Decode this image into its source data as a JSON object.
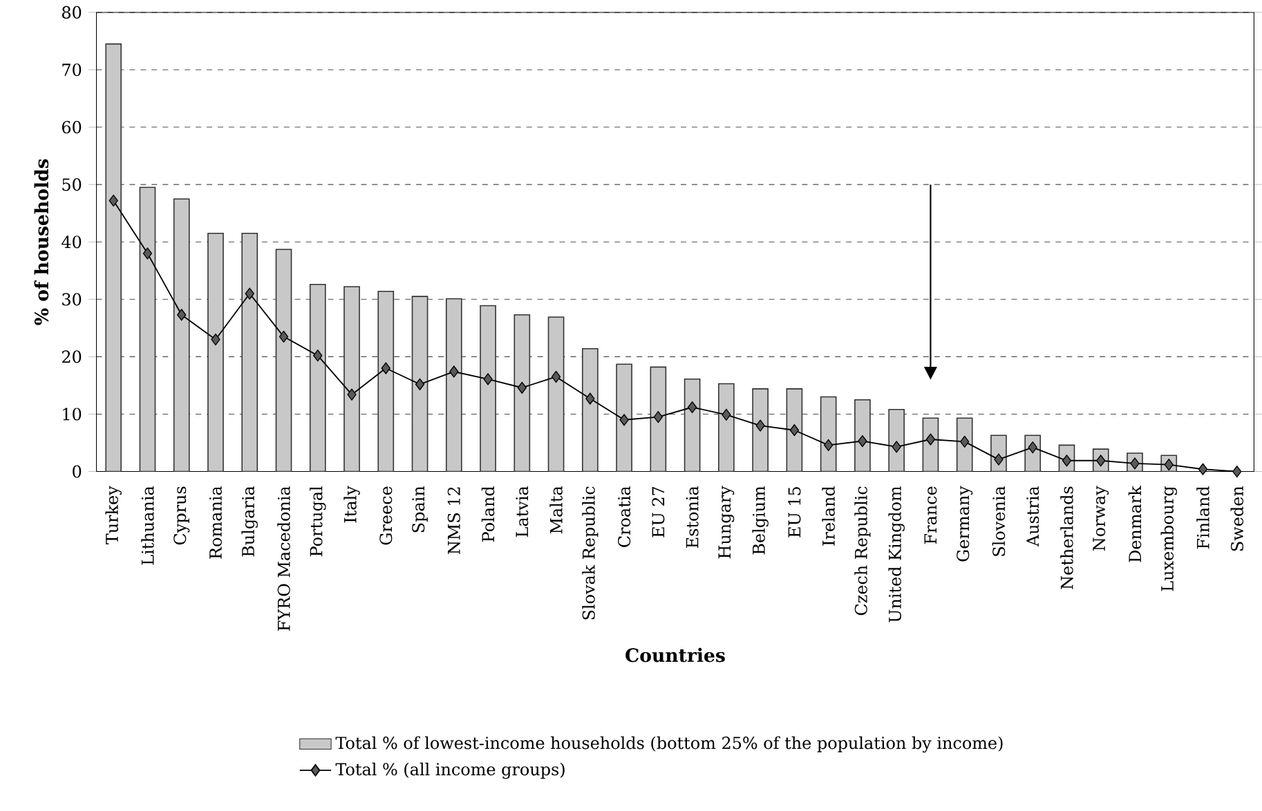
{
  "chart_data": {
    "type": "bar",
    "xlabel": "Countries",
    "ylabel": "% of households",
    "categories": [
      "Turkey",
      "Lithuania",
      "Cyprus",
      "Romania",
      "Bulgaria",
      "FYRO Macedonia",
      "Portugal",
      "Italy",
      "Greece",
      "Spain",
      "NMS 12",
      "Poland",
      "Latvia",
      "Malta",
      "Slovak Republic",
      "Croatia",
      "EU 27",
      "Estonia",
      "Hungary",
      "Belgium",
      "EU 15",
      "Ireland",
      "Czech Republic",
      "United Kingdom",
      "France",
      "Germany",
      "Slovenia",
      "Austria",
      "Netherlands",
      "Norway",
      "Denmark",
      "Luxembourg",
      "Finland",
      "Sweden"
    ],
    "series": [
      {
        "name": "Total % of lowest-income households (bottom 25% of the population by income)",
        "color": "#c8c8c8",
        "values": [
          74.5,
          49.5,
          47.5,
          41.5,
          41.5,
          38.7,
          32.6,
          32.2,
          31.4,
          30.5,
          30.1,
          28.9,
          27.3,
          26.9,
          21.4,
          18.7,
          18.2,
          16.1,
          15.3,
          14.4,
          14.4,
          13.0,
          12.5,
          10.8,
          9.3,
          9.3,
          6.3,
          6.3,
          4.6,
          3.9,
          3.2,
          2.8,
          null,
          null
        ]
      },
      {
        "name": "Total % (all income groups)",
        "type": "line",
        "color": "#5a5a5a",
        "values": [
          47.2,
          38.0,
          27.3,
          23.0,
          31.0,
          23.5,
          20.2,
          13.4,
          18.0,
          15.2,
          17.4,
          16.1,
          14.6,
          16.5,
          12.7,
          9.0,
          9.5,
          11.2,
          9.9,
          8.0,
          7.2,
          4.6,
          5.3,
          4.3,
          5.6,
          5.2,
          2.1,
          4.2,
          1.9,
          1.9,
          1.4,
          1.2,
          0.4,
          0.0
        ]
      }
    ],
    "ylim": [
      0,
      80
    ],
    "yticks": [
      0,
      10,
      20,
      30,
      40,
      50,
      60,
      70,
      80
    ],
    "grid": "y",
    "legend": "bottom",
    "marker": "diamond"
  }
}
